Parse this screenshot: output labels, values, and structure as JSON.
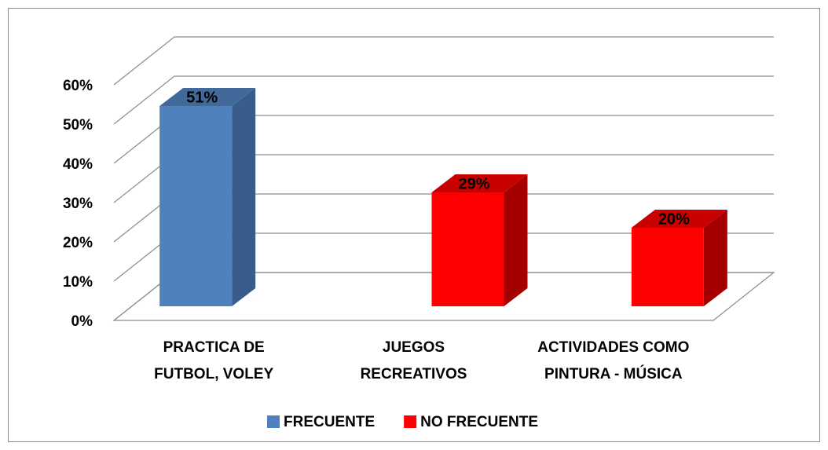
{
  "chart_data": {
    "type": "bar3d",
    "categories": [
      [
        "PRACTICA DE",
        "FUTBOL, VOLEY"
      ],
      [
        "JUEGOS",
        "RECREATIVOS"
      ],
      [
        "ACTIVIDADES  COMO",
        "PINTURA - MÚSICA"
      ]
    ],
    "series": [
      {
        "name": "FRECUENTE",
        "color": "#4f81bd",
        "side": "#385d8a",
        "top": "#41699a",
        "values": [
          51,
          null,
          null
        ],
        "value_labels": [
          "51%",
          null,
          null
        ]
      },
      {
        "name": "NO FRECUENTE",
        "color": "#ff0000",
        "side": "#a50000",
        "top": "#c80000",
        "values": [
          null,
          29,
          20
        ],
        "value_labels": [
          null,
          "29%",
          "20%"
        ]
      }
    ],
    "ylim": [
      0,
      60
    ],
    "yticks": [
      {
        "value": 0,
        "label": "0%"
      },
      {
        "value": 10,
        "label": "10%"
      },
      {
        "value": 20,
        "label": "20%"
      },
      {
        "value": 30,
        "label": "30%"
      },
      {
        "value": 40,
        "label": "40%"
      },
      {
        "value": 50,
        "label": "50%"
      },
      {
        "value": 60,
        "label": "60%"
      }
    ],
    "grid": true,
    "legend": "bottom"
  }
}
